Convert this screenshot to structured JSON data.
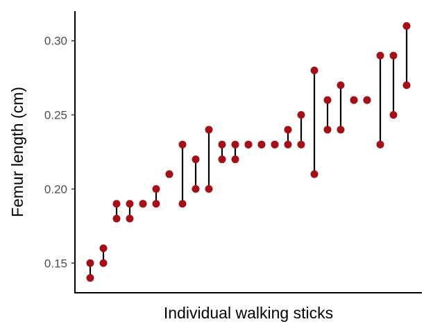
{
  "chart_data": {
    "type": "dot-range",
    "xlabel": "Individual walking sticks",
    "ylabel": "Femur length (cm)",
    "ylim": [
      0.13,
      0.32
    ],
    "yticks": [
      0.15,
      0.2,
      0.25,
      0.3
    ],
    "ytick_labels": [
      "0.15",
      "0.20",
      "0.25",
      "0.30"
    ],
    "grid": false,
    "legend": "none",
    "point_color": "#A50F15",
    "line_color": "#000000",
    "individuals": [
      {
        "min": 0.14,
        "max": 0.15
      },
      {
        "min": 0.15,
        "max": 0.16
      },
      {
        "min": 0.18,
        "max": 0.19
      },
      {
        "min": 0.18,
        "max": 0.19
      },
      {
        "min": 0.19,
        "max": 0.19
      },
      {
        "min": 0.19,
        "max": 0.2
      },
      {
        "min": 0.21,
        "max": 0.21
      },
      {
        "min": 0.19,
        "max": 0.23
      },
      {
        "min": 0.2,
        "max": 0.22
      },
      {
        "min": 0.2,
        "max": 0.24
      },
      {
        "min": 0.22,
        "max": 0.23
      },
      {
        "min": 0.22,
        "max": 0.23
      },
      {
        "min": 0.23,
        "max": 0.23
      },
      {
        "min": 0.23,
        "max": 0.23
      },
      {
        "min": 0.23,
        "max": 0.23
      },
      {
        "min": 0.23,
        "max": 0.24
      },
      {
        "min": 0.23,
        "max": 0.25
      },
      {
        "min": 0.21,
        "max": 0.28
      },
      {
        "min": 0.24,
        "max": 0.26
      },
      {
        "min": 0.24,
        "max": 0.27
      },
      {
        "min": 0.26,
        "max": 0.26
      },
      {
        "min": 0.26,
        "max": 0.26
      },
      {
        "min": 0.23,
        "max": 0.29
      },
      {
        "min": 0.25,
        "max": 0.29
      },
      {
        "min": 0.27,
        "max": 0.31
      }
    ]
  }
}
